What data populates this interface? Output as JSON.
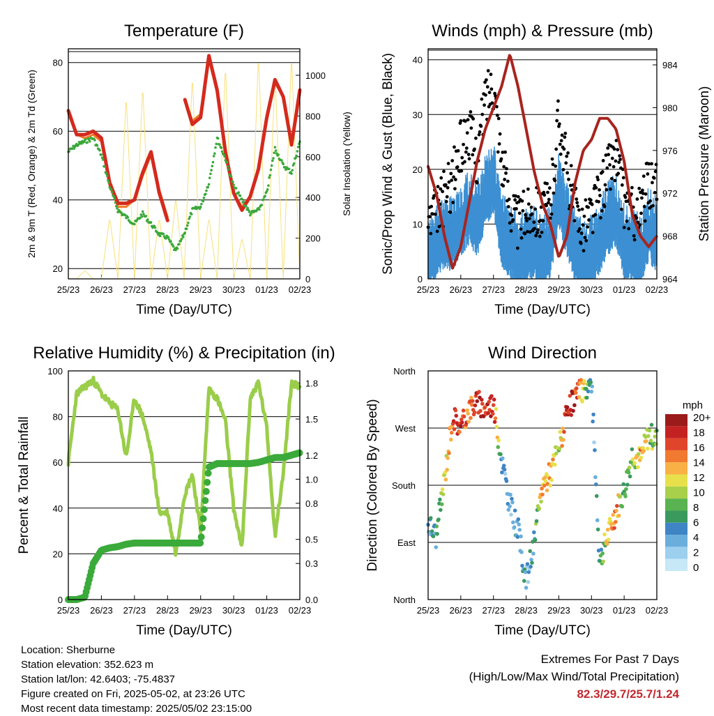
{
  "colors": {
    "temp2m": "#d42a1e",
    "temp9m": "#f07a2a",
    "dewpoint": "#3aa83a",
    "solar": "#f7e07a",
    "sonic_wind": "#3b8fd2",
    "gust": "#000000",
    "pressure": "#a8241e",
    "rh": "#9acd4a",
    "precip": "#3aaa3a",
    "speed_scale": [
      "#c6e8f7",
      "#9cd0ee",
      "#6aaedc",
      "#3f85c5",
      "#3a9a5e",
      "#58b350",
      "#a8d04a",
      "#e8e04a",
      "#f9b045",
      "#f27a30",
      "#e0442a",
      "#c42222",
      "#9b1a1a"
    ]
  },
  "x_ticks": [
    "25/23",
    "26/23",
    "27/23",
    "28/23",
    "29/23",
    "30/23",
    "01/23",
    "02/23"
  ],
  "chart_data": [
    {
      "type": "line",
      "title": "Temperature (F)",
      "xlabel": "Time (Day/UTC)",
      "ylabel": "2m & 9m T (Red, Orange) & 2m Td (Green)",
      "ylabel_right": "Solar Insolation (Yellow)",
      "ylim": [
        17,
        84
      ],
      "ylim_right": [
        0,
        1130
      ],
      "yticks": [
        20,
        40,
        60,
        80
      ],
      "yticks_right": [
        0,
        200,
        400,
        600,
        800,
        1000
      ],
      "grid": true,
      "x": [
        0,
        0.25,
        0.5,
        0.75,
        1,
        1.25,
        1.5,
        1.75,
        2,
        2.25,
        2.5,
        2.75,
        3,
        3.25,
        3.5,
        3.75,
        4,
        4.25,
        4.5,
        4.75,
        5,
        5.25,
        5.5,
        5.75,
        6,
        6.25,
        6.5,
        6.75,
        7
      ],
      "series": [
        {
          "name": "2m T",
          "values": [
            66,
            59,
            59,
            60,
            58,
            45,
            39,
            39,
            40,
            48,
            54,
            42,
            34,
            null,
            70,
            62,
            64,
            82,
            72,
            54,
            42,
            37,
            41,
            49,
            64,
            75,
            70,
            56,
            72
          ]
        },
        {
          "name": "9m T",
          "values": [
            65,
            59,
            58,
            59,
            57,
            44,
            38,
            38,
            40,
            47,
            53,
            43,
            35,
            null,
            70,
            63,
            65,
            81,
            71,
            54,
            42,
            38,
            41,
            49,
            63,
            74,
            70,
            56,
            71
          ]
        },
        {
          "name": "2m Td",
          "values": [
            54,
            56,
            57,
            58,
            53,
            44,
            37,
            35,
            33,
            36,
            33,
            30,
            29,
            25,
            30,
            37,
            38,
            45,
            58,
            52,
            44,
            40,
            36,
            37,
            42,
            55,
            50,
            48,
            57
          ]
        },
        {
          "name": "Solar Insolation",
          "axis": "right",
          "values": [
            0,
            0,
            40,
            0,
            0,
            300,
            0,
            900,
            0,
            950,
            0,
            300,
            0,
            400,
            0,
            1000,
            0,
            300,
            0,
            1050,
            0,
            200,
            0,
            1100,
            0,
            1000,
            0,
            1100,
            0
          ]
        }
      ]
    },
    {
      "type": "line",
      "title": "Winds (mph) & Pressure (mb)",
      "xlabel": "Time (Day/UTC)",
      "ylabel": "Sonic/Prop Wind & Gust (Blue, Black)",
      "ylabel_right": "Station Pressure (Maroon)",
      "ylim": [
        0,
        42
      ],
      "ylim_right": [
        964,
        985.5
      ],
      "yticks": [
        0,
        10,
        20,
        30,
        40
      ],
      "yticks_right": [
        964,
        968,
        972,
        976,
        980,
        984
      ],
      "grid": true,
      "x": [
        0,
        0.25,
        0.5,
        0.75,
        1,
        1.25,
        1.5,
        1.75,
        2,
        2.25,
        2.5,
        2.75,
        3,
        3.25,
        3.5,
        3.75,
        4,
        4.25,
        4.5,
        4.75,
        5,
        5.25,
        5.5,
        5.75,
        6,
        6.25,
        6.5,
        6.75,
        7
      ],
      "series": [
        {
          "name": "Sonic Wind",
          "values": [
            5,
            8,
            10,
            9,
            12,
            14,
            12,
            17,
            20,
            10,
            8,
            6,
            7,
            8,
            6,
            8,
            17,
            12,
            7,
            5,
            6,
            9,
            12,
            14,
            8,
            7,
            6,
            11,
            9
          ]
        },
        {
          "name": "Gust",
          "values": [
            10,
            12,
            15,
            18,
            24,
            27,
            22,
            33,
            36,
            22,
            14,
            10,
            12,
            13,
            12,
            14,
            30,
            20,
            12,
            10,
            12,
            15,
            20,
            22,
            14,
            12,
            12,
            18,
            16
          ]
        },
        {
          "name": "Station Pressure",
          "axis": "right",
          "values": [
            974.5,
            972,
            968,
            965,
            967,
            971,
            975,
            978,
            980,
            982,
            985,
            982,
            978,
            974,
            971,
            969,
            966,
            968,
            973,
            976,
            977,
            979,
            979,
            978,
            975,
            970,
            968,
            967,
            968
          ]
        }
      ]
    },
    {
      "type": "line",
      "title": "Relative Humidity (%) & Precipitation (in)",
      "xlabel": "Time (Day/UTC)",
      "ylabel": "Percent & Total Rainfall",
      "ylim": [
        0,
        100
      ],
      "ylim_right": [
        0,
        1.9
      ],
      "yticks": [
        0,
        20,
        40,
        60,
        80,
        100
      ],
      "yticks_right": [
        "0.0",
        "0.3",
        "0.5",
        "0.8",
        "1.0",
        "1.2",
        "1.5",
        "1.8"
      ],
      "grid": true,
      "x": [
        0,
        0.25,
        0.5,
        0.75,
        1,
        1.25,
        1.5,
        1.75,
        2,
        2.25,
        2.5,
        2.75,
        3,
        3.25,
        3.5,
        3.75,
        4,
        4.25,
        4.5,
        4.75,
        5,
        5.25,
        5.5,
        5.75,
        6,
        6.25,
        6.5,
        6.75,
        7
      ],
      "series": [
        {
          "name": "RH",
          "values": [
            60,
            90,
            93,
            96,
            90,
            86,
            83,
            62,
            88,
            80,
            65,
            38,
            38,
            20,
            45,
            55,
            30,
            92,
            88,
            78,
            40,
            22,
            88,
            95,
            75,
            28,
            55,
            95,
            93
          ]
        },
        {
          "name": "Total Precip",
          "axis": "right",
          "values": [
            0,
            0,
            0.02,
            0.3,
            0.41,
            0.43,
            0.44,
            0.46,
            0.47,
            0.47,
            0.47,
            0.47,
            0.47,
            0.47,
            0.47,
            0.47,
            0.47,
            1.1,
            1.13,
            1.13,
            1.13,
            1.13,
            1.13,
            1.14,
            1.16,
            1.18,
            1.18,
            1.2,
            1.22
          ]
        }
      ]
    },
    {
      "type": "scatter",
      "title": "Wind Direction",
      "xlabel": "Time (Day/UTC)",
      "ylabel": "Direction (Colored By Speed)",
      "yticks": [
        "North",
        "East",
        "South",
        "West",
        "North"
      ],
      "grid": true,
      "legend_title": "mph",
      "legend_labels": [
        "20+",
        "18",
        "16",
        "14",
        "12",
        "10",
        "8",
        "6",
        "4",
        "2",
        "0"
      ],
      "x": [
        0,
        0.25,
        0.5,
        0.75,
        1,
        1.25,
        1.5,
        1.75,
        2,
        2.25,
        2.5,
        2.75,
        3,
        3.25,
        3.5,
        3.75,
        4,
        4.25,
        4.5,
        4.75,
        5,
        5.25,
        5.5,
        5.75,
        6,
        6.25,
        6.5,
        6.75,
        7
      ],
      "direction_deg": [
        120,
        100,
        190,
        290,
        270,
        300,
        310,
        300,
        310,
        220,
        150,
        110,
        30,
        90,
        180,
        200,
        240,
        290,
        320,
        330,
        340,
        60,
        100,
        140,
        170,
        230,
        220,
        260,
        250
      ],
      "speed": [
        4,
        6,
        10,
        16,
        18,
        15,
        18,
        17,
        19,
        4,
        3,
        5,
        4,
        5,
        14,
        13,
        10,
        18,
        18,
        12,
        3,
        5,
        12,
        15,
        6,
        9,
        14,
        10,
        8
      ]
    }
  ],
  "footer": {
    "location": "Location: Sherburne",
    "elevation": "Station elevation: 352.623 m",
    "latlon": "Station lat/lon: 42.6403; -75.4837",
    "created": "Figure created on Fri, 2025-05-02, at 23:26 UTC",
    "recent": "Most recent data timestamp: 2025/05/02 23:15:00",
    "extremes_title": "Extremes For Past 7 Days",
    "extremes_sub": "(High/Low/Max Wind/Total Precipitation)",
    "extremes_values": "82.3/29.7/25.7/1.24"
  }
}
